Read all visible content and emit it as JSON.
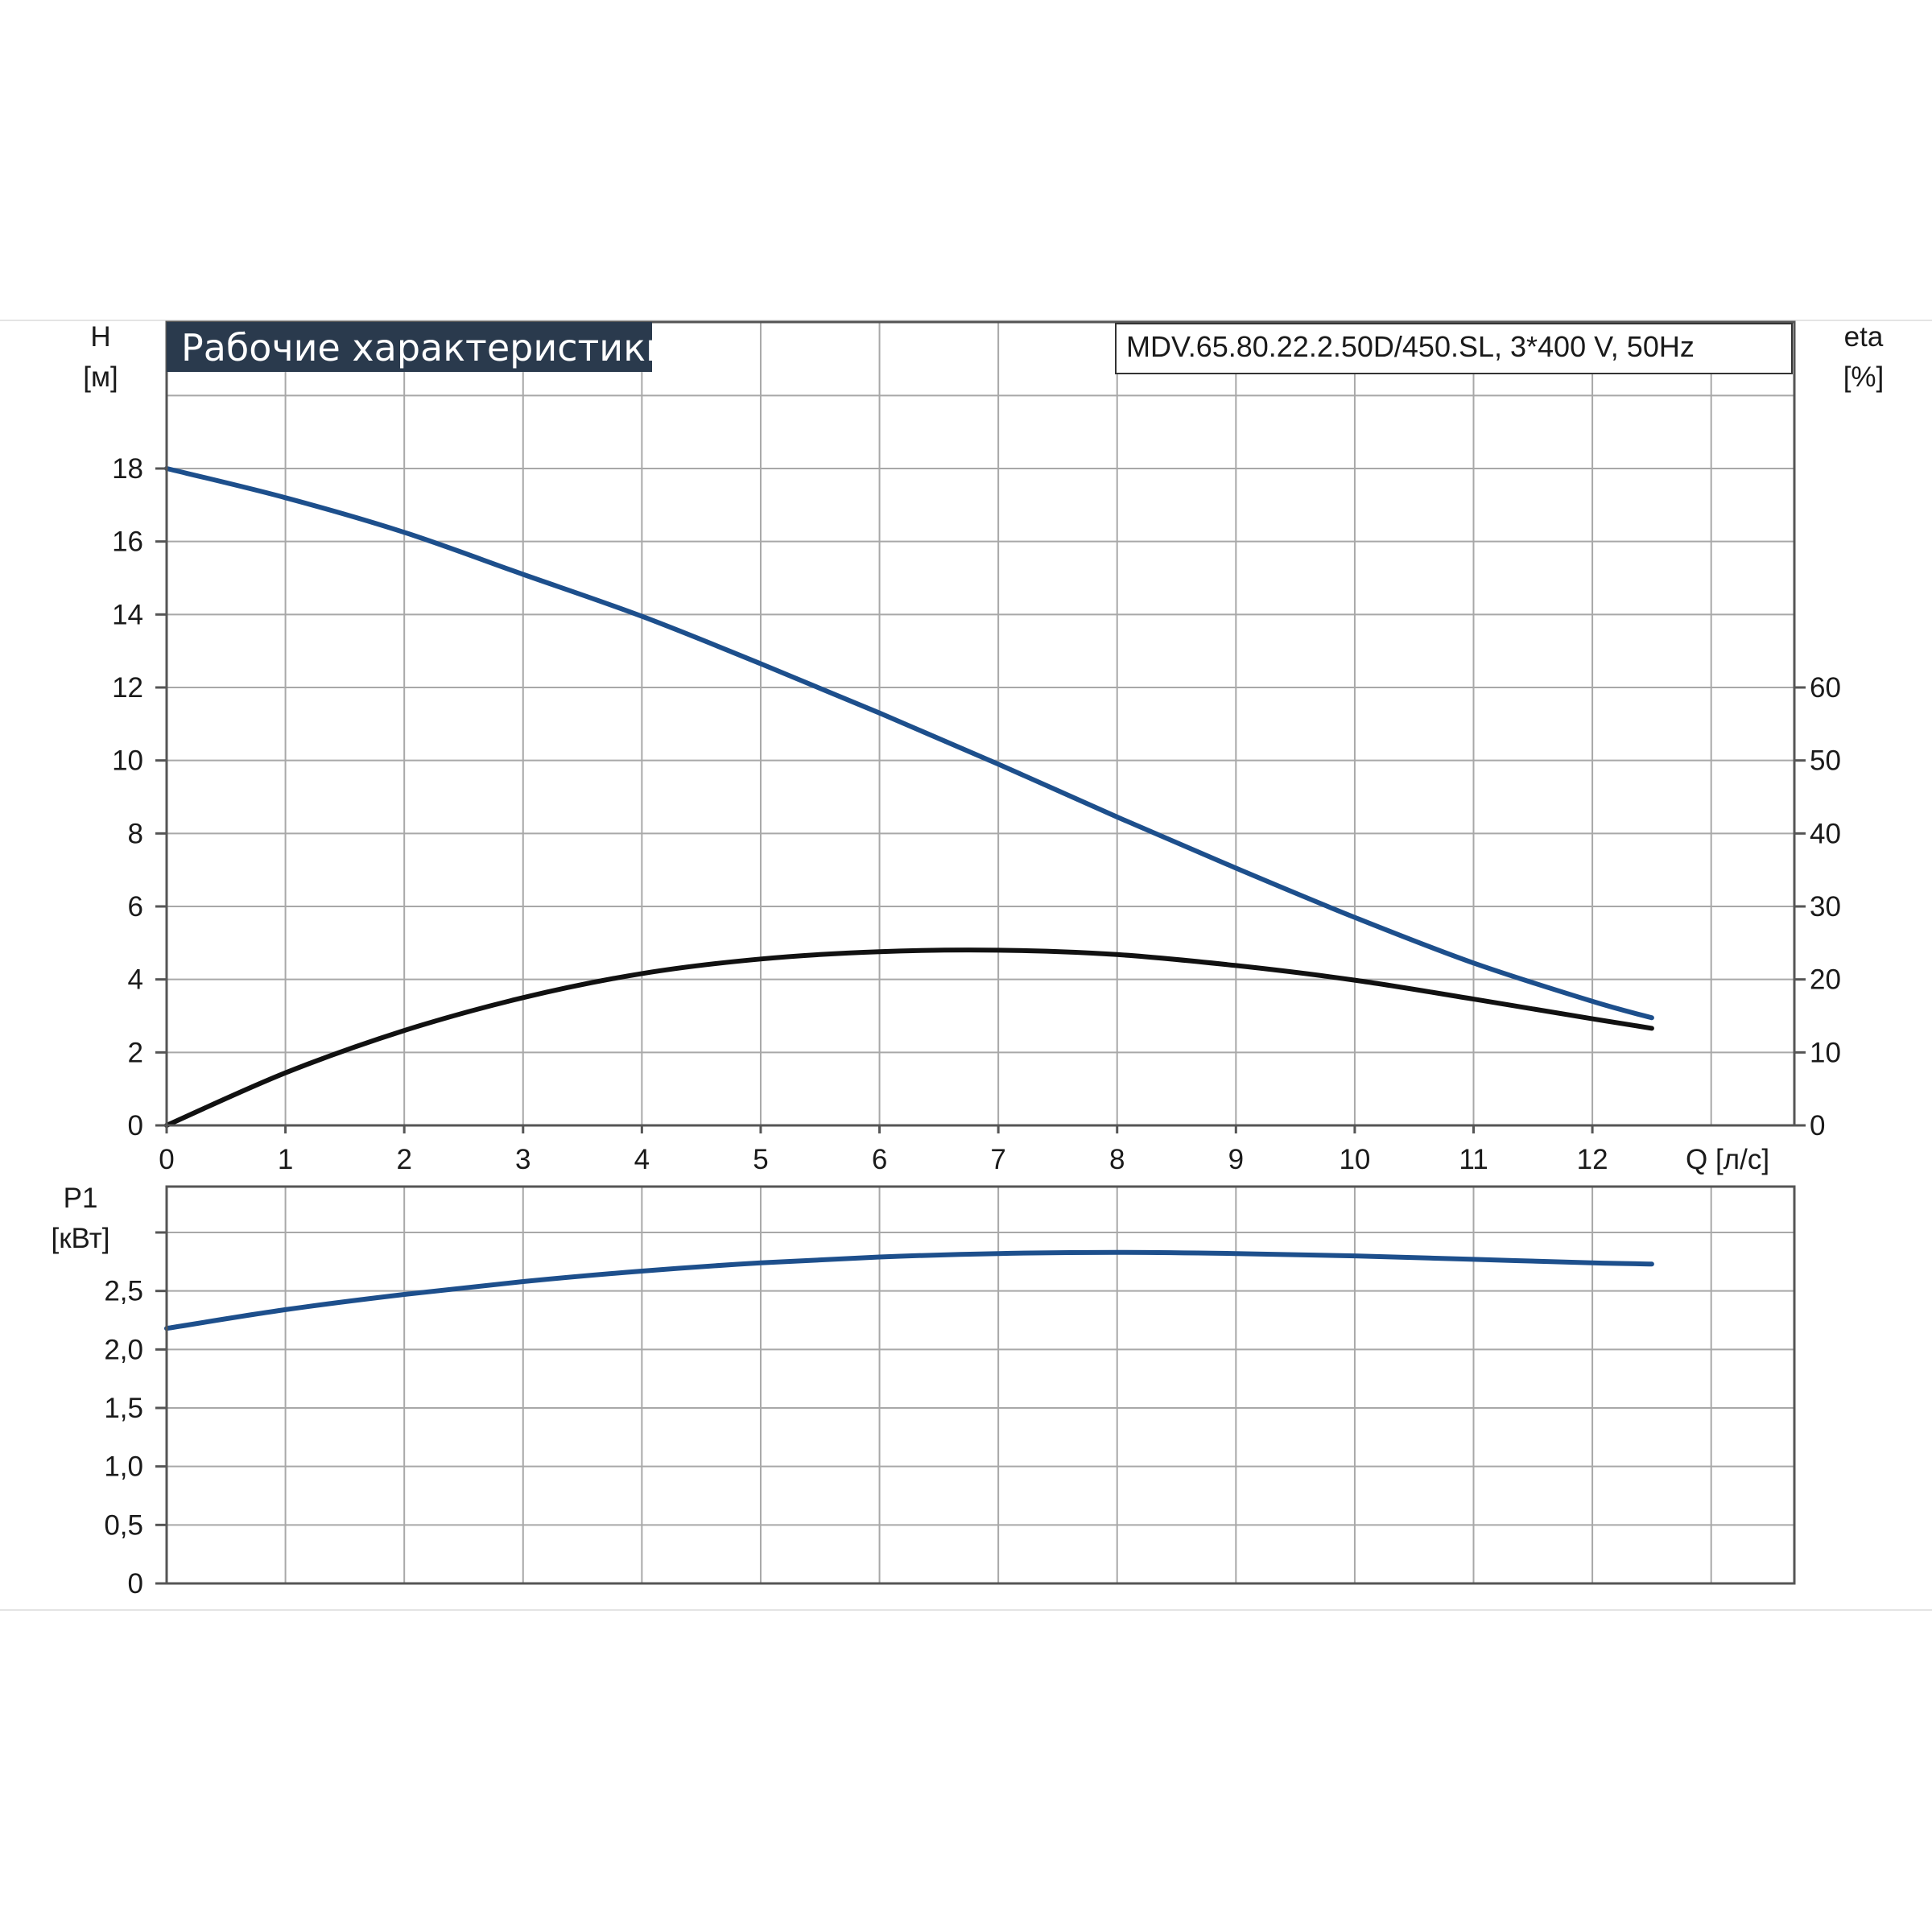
{
  "banner": {
    "title": "Рабочие характеристики"
  },
  "model": {
    "label": "MDV.65.80.22.2.50D/450.SL, 3*400 V, 50Hz"
  },
  "colors": {
    "blue": "#1d4f8c",
    "black": "#111111",
    "banner_bg": "#2a3a4d"
  },
  "chart_data": [
    {
      "type": "line",
      "xlabel": "Q [л/с]",
      "ylabel": "H\n[м]",
      "ylabel_lines": [
        "H",
        "[м]"
      ],
      "y2label_lines": [
        "eta",
        "[%]"
      ],
      "xlim": [
        0,
        13.7
      ],
      "x_ticks": [
        "0",
        "1",
        "2",
        "3",
        "4",
        "5",
        "6",
        "7",
        "8",
        "9",
        "10",
        "11",
        "12"
      ],
      "ylim": [
        0,
        18
      ],
      "y_ticks": [
        "0",
        "2",
        "4",
        "6",
        "8",
        "10",
        "12",
        "14",
        "16",
        "18"
      ],
      "y2lim": [
        0,
        90
      ],
      "y2_ticks": [
        "0",
        "10",
        "20",
        "30",
        "40",
        "50",
        "60"
      ],
      "grid": true,
      "series": [
        {
          "axis": "left",
          "color": "#1d4f8c",
          "x": [
            0,
            1,
            2,
            3,
            4,
            5,
            6,
            7,
            8,
            9,
            10,
            11,
            12,
            12.5
          ],
          "y": [
            18.0,
            17.2,
            16.25,
            15.1,
            13.95,
            12.65,
            11.3,
            9.9,
            8.45,
            7.05,
            5.7,
            4.45,
            3.4,
            2.95
          ]
        },
        {
          "axis": "right",
          "color": "#111111",
          "x": [
            0,
            1,
            2,
            3,
            4,
            5,
            6,
            7,
            8,
            9,
            10,
            11,
            12,
            12.5
          ],
          "y": [
            0,
            7.2,
            13.0,
            17.5,
            20.8,
            22.8,
            23.8,
            24.0,
            23.4,
            21.9,
            19.9,
            17.3,
            14.6,
            13.3
          ]
        }
      ]
    },
    {
      "type": "line",
      "ylabel": "P1\n[кВт]",
      "ylabel_lines": [
        "P1",
        "[кВт]"
      ],
      "xlim": [
        0,
        13.7
      ],
      "ylim": [
        0,
        3.0
      ],
      "y_ticks": [
        "0",
        "0,5",
        "1,0",
        "1,5",
        "2,0",
        "2,5",
        ""
      ],
      "grid": true,
      "series": [
        {
          "axis": "left",
          "color": "#1d4f8c",
          "x": [
            0,
            1,
            2,
            3,
            4,
            5,
            6,
            7,
            8,
            9,
            10,
            11,
            12,
            12.5
          ],
          "y": [
            2.18,
            2.34,
            2.47,
            2.58,
            2.67,
            2.74,
            2.79,
            2.82,
            2.83,
            2.82,
            2.8,
            2.77,
            2.74,
            2.73
          ]
        }
      ]
    }
  ]
}
